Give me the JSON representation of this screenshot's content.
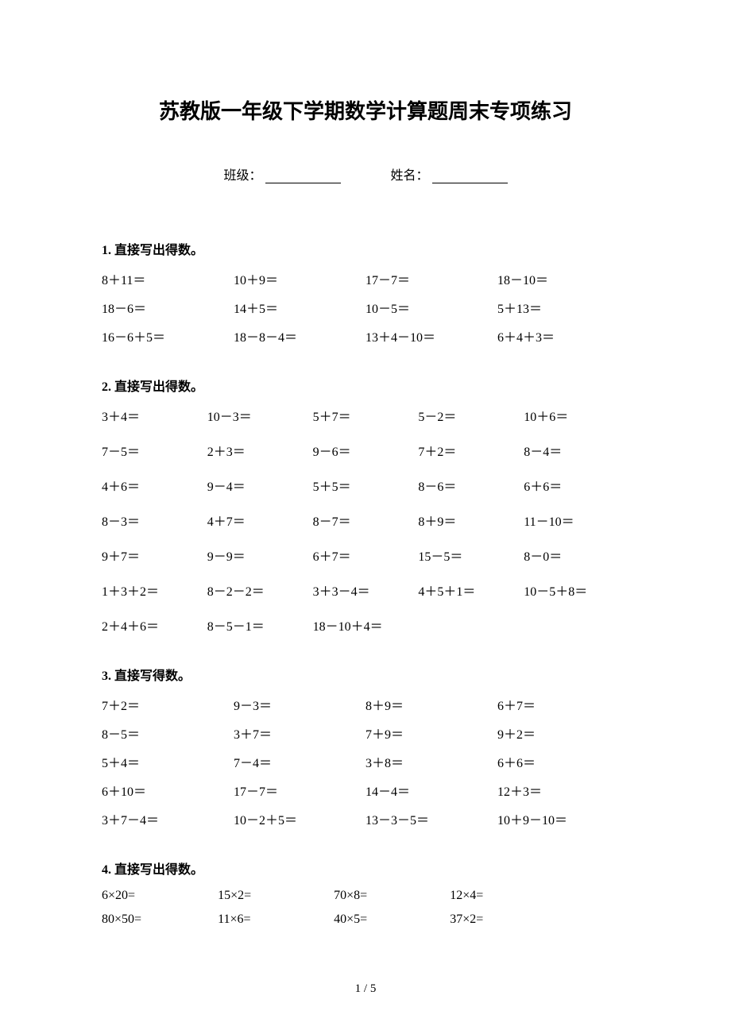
{
  "title": "苏教版一年级下学期数学计算题周末专项练习",
  "header": {
    "class_label": "班级：",
    "name_label": "姓名："
  },
  "sections": [
    {
      "number": "1.",
      "title": "直接写出得数。",
      "cols": 4,
      "cell_class": "cell-4",
      "row_gap": "normal",
      "rows": [
        [
          "8＋11＝",
          "10＋9＝",
          "17－7＝",
          "18－10＝"
        ],
        [
          "18－6＝",
          "14＋5＝",
          "10－5＝",
          "5＋13＝"
        ],
        [
          "16－6＋5＝",
          "18－8－4＝",
          "13＋4－10＝",
          "6＋4＋3＝"
        ]
      ]
    },
    {
      "number": "2.",
      "title": "直接写出得数。",
      "cols": 5,
      "cell_class": "cell-5",
      "row_gap": "large",
      "rows": [
        [
          "3＋4＝",
          "10－3＝",
          "5＋7＝",
          "5－2＝",
          "10＋6＝"
        ],
        [
          "7－5＝",
          "2＋3＝",
          "9－6＝",
          "7＋2＝",
          "8－4＝"
        ],
        [
          "4＋6＝",
          "9－4＝",
          "5＋5＝",
          "8－6＝",
          "6＋6＝"
        ],
        [
          "8－3＝",
          "4＋7＝",
          "8－7＝",
          "8＋9＝",
          "11－10＝"
        ],
        [
          "9＋7＝",
          "9－9＝",
          "6＋7＝",
          "15－5＝",
          "8－0＝"
        ],
        [
          "1＋3＋2＝",
          "8－2－2＝",
          "3＋3－4＝",
          "4＋5＋1＝",
          "10－5＋8＝"
        ],
        [
          "2＋4＋6＝",
          "8－5－1＝",
          "18－10＋4＝",
          "",
          ""
        ]
      ]
    },
    {
      "number": "3.",
      "title": "直接写得数。",
      "cols": 4,
      "cell_class": "cell-4",
      "row_gap": "normal",
      "rows": [
        [
          "7＋2＝",
          "9－3＝",
          "8＋9＝",
          "6＋7＝"
        ],
        [
          "8－5＝",
          "3＋7＝",
          "7＋9＝",
          "9＋2＝"
        ],
        [
          "5＋4＝",
          "7－4＝",
          "3＋8＝",
          "6＋6＝"
        ],
        [
          "6＋10＝",
          "17－7＝",
          "14－4＝",
          "12＋3＝"
        ],
        [
          "3＋7－4＝",
          "10－2＋5＝",
          "13－3－5＝",
          "10＋9－10＝"
        ]
      ]
    },
    {
      "number": "4.",
      "title": "直接写出得数。",
      "cols": 4,
      "cell_class": "cell-4b",
      "row_gap": "normal",
      "rows": [
        [
          "6×20=",
          "15×2=",
          "70×8=",
          "12×4="
        ],
        [
          "80×50=",
          "11×6=",
          "40×5=",
          "37×2="
        ]
      ]
    }
  ],
  "page_number": "1 / 5",
  "colors": {
    "background": "#ffffff",
    "text": "#000000"
  },
  "typography": {
    "title_fontsize": 26,
    "body_fontsize": 16
  }
}
